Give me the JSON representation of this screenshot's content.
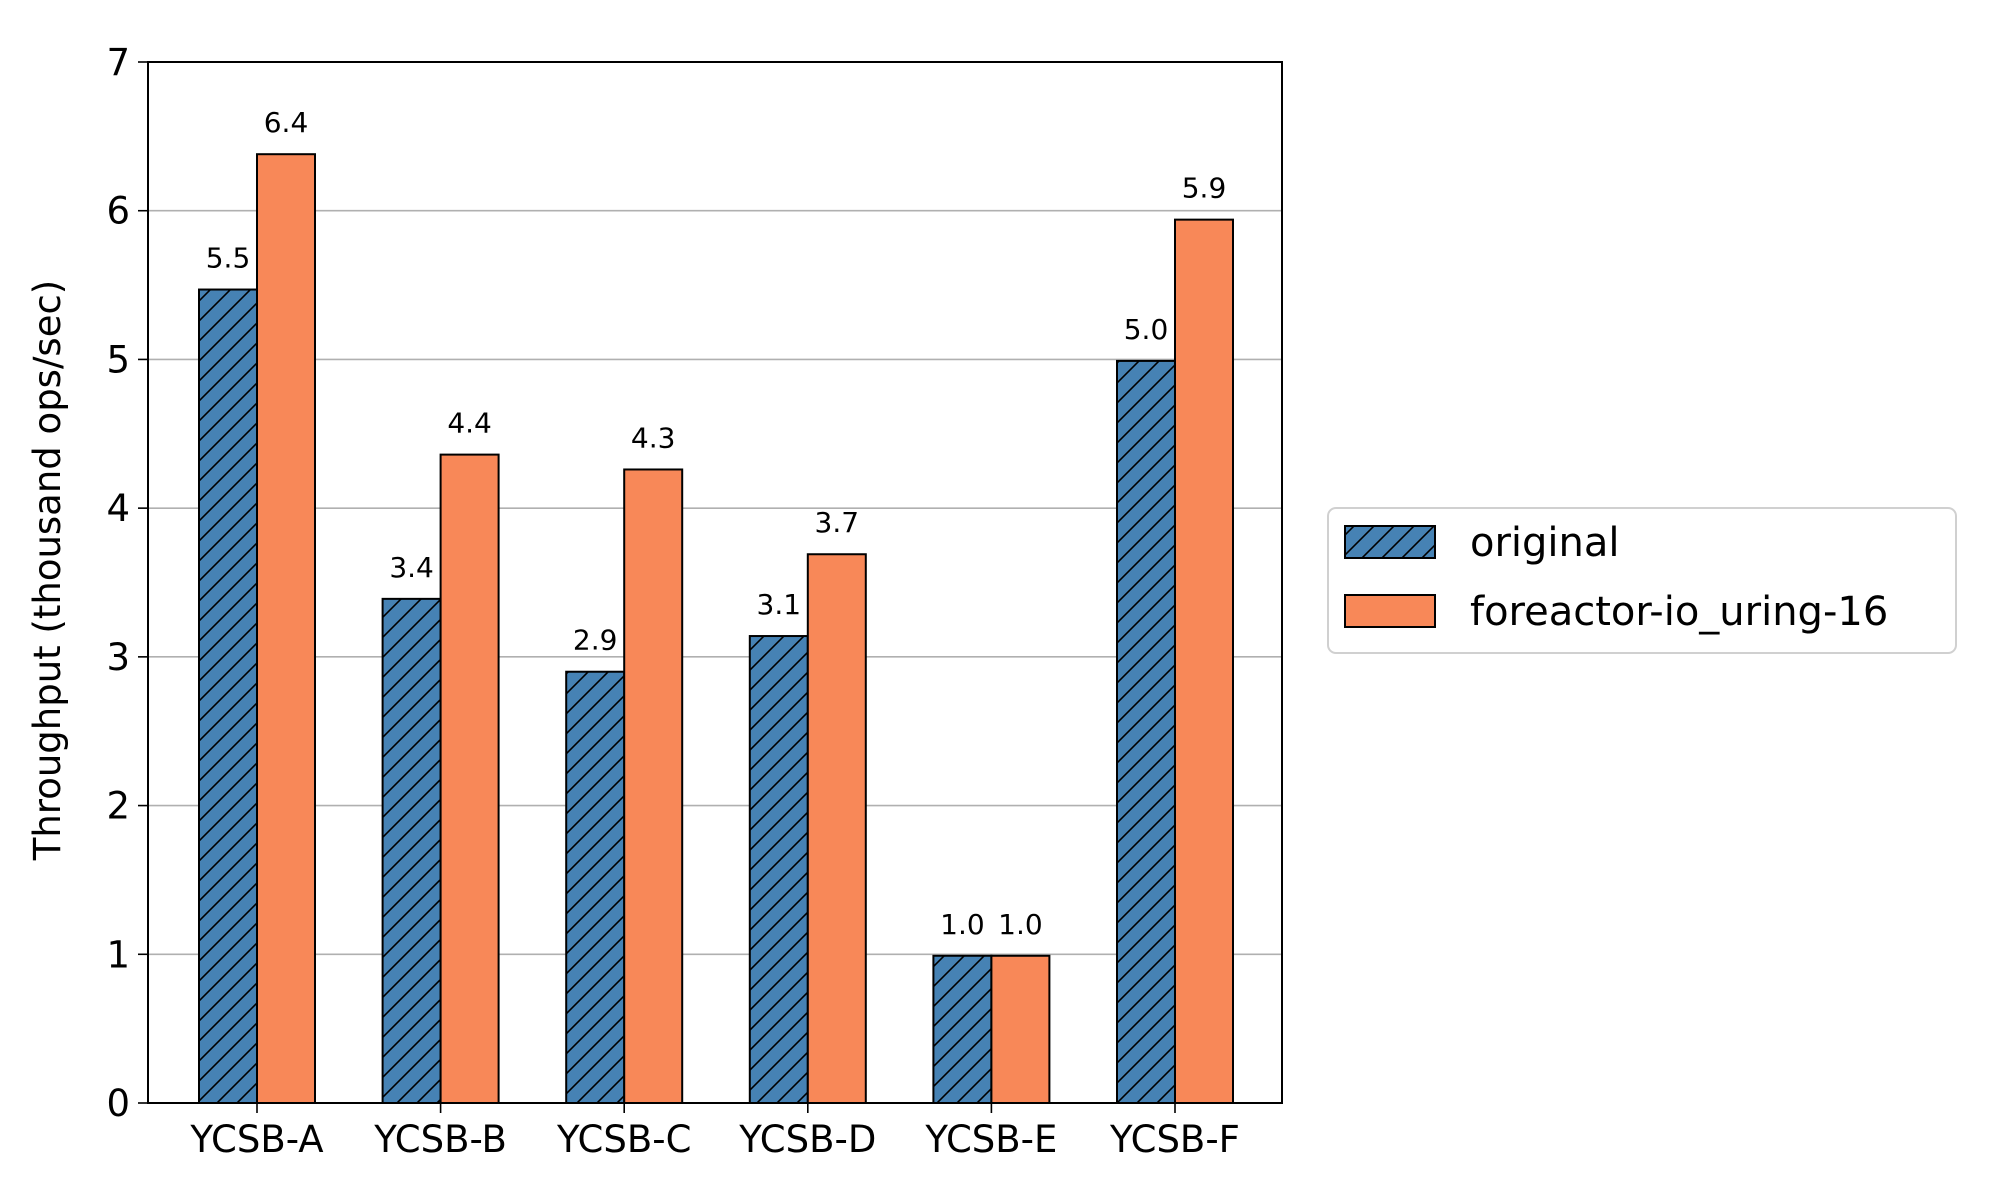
{
  "chart_data": {
    "type": "bar",
    "title": "",
    "xlabel": "",
    "ylabel": "Throughput (thousand ops/sec)",
    "categories": [
      "YCSB-A",
      "YCSB-B",
      "YCSB-C",
      "YCSB-D",
      "YCSB-E",
      "YCSB-F"
    ],
    "series": [
      {
        "name": "original",
        "color": "#4682b4",
        "hatch": "diagonal",
        "values": [
          5.47,
          3.39,
          2.9,
          3.14,
          0.99,
          4.99
        ],
        "labels": [
          "5.5",
          "3.4",
          "2.9",
          "3.1",
          "1.0",
          "5.0"
        ]
      },
      {
        "name": "foreactor-io_uring-16",
        "color": "#f88858",
        "hatch": "none",
        "values": [
          6.38,
          4.36,
          4.26,
          3.69,
          0.99,
          5.94
        ],
        "labels": [
          "6.4",
          "4.4",
          "4.3",
          "3.7",
          "1.0",
          "5.9"
        ]
      }
    ],
    "ylim": [
      0,
      7
    ],
    "yticks": [
      "0",
      "1",
      "2",
      "3",
      "4",
      "5",
      "6",
      "7"
    ],
    "grid": "y",
    "legend": "right"
  }
}
